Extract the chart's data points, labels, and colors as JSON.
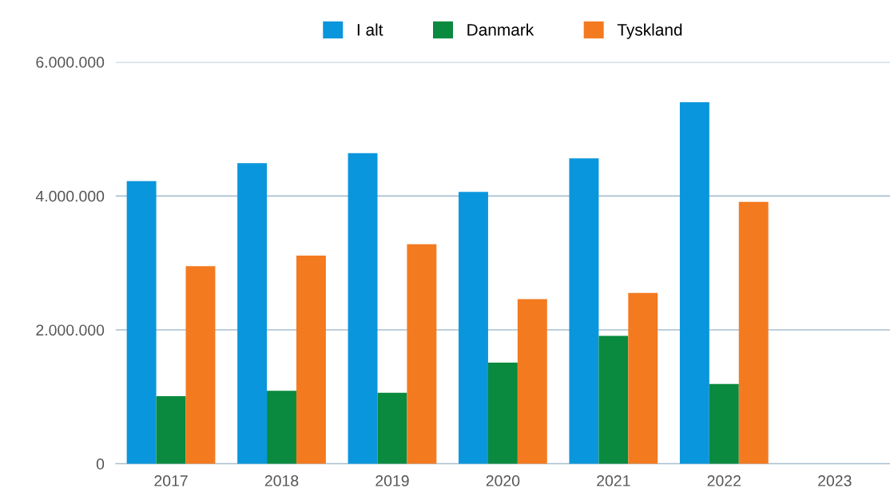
{
  "chart_data": {
    "type": "bar",
    "categories": [
      "2017",
      "2018",
      "2019",
      "2020",
      "2021",
      "2022",
      "2023"
    ],
    "series": [
      {
        "name": "I alt",
        "color": "#0a96dc",
        "values": [
          4220000,
          4490000,
          4640000,
          4060000,
          4560000,
          5400000,
          null
        ]
      },
      {
        "name": "Danmark",
        "color": "#0a8a3e",
        "values": [
          1010000,
          1090000,
          1060000,
          1510000,
          1910000,
          1190000,
          null
        ]
      },
      {
        "name": "Tyskland",
        "color": "#f47a20",
        "values": [
          2950000,
          3110000,
          3280000,
          2460000,
          2550000,
          3910000,
          null
        ]
      }
    ],
    "ylim": [
      0,
      6000000
    ],
    "yticks": [
      {
        "value": 0,
        "label": "0"
      },
      {
        "value": 2000000,
        "label": "2.000.000"
      },
      {
        "value": 4000000,
        "label": "4.000.000"
      },
      {
        "value": 6000000,
        "label": "6.000.000"
      }
    ],
    "grid": "y",
    "legend": "top"
  }
}
